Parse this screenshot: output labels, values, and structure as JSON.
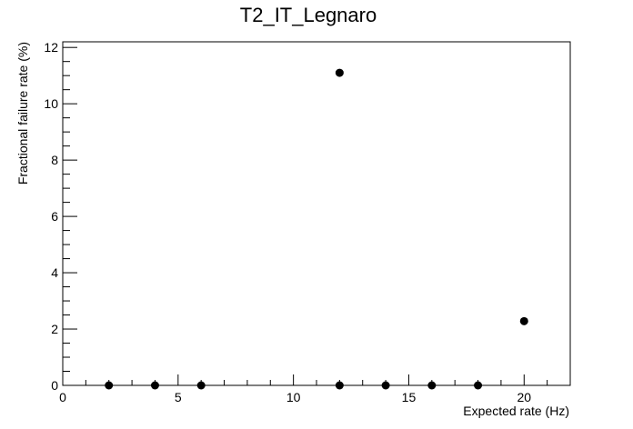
{
  "chart_data": {
    "type": "scatter",
    "title": "T2_IT_Legnaro",
    "xlabel": "Expected rate (Hz)",
    "ylabel": "Fractional failure rate (%)",
    "xlim": [
      0,
      22
    ],
    "ylim": [
      0,
      12.2
    ],
    "x_ticks": [
      0,
      5,
      10,
      15,
      20
    ],
    "y_ticks": [
      0,
      2,
      4,
      6,
      8,
      10,
      12
    ],
    "x_tick_labels": [
      "0",
      "5",
      "10",
      "15",
      "20"
    ],
    "y_tick_labels": [
      "0",
      "2",
      "4",
      "6",
      "8",
      "10",
      "12"
    ],
    "points": [
      {
        "x": 2,
        "y": 0
      },
      {
        "x": 4,
        "y": 0
      },
      {
        "x": 6,
        "y": 0
      },
      {
        "x": 12,
        "y": 0
      },
      {
        "x": 12,
        "y": 11.1
      },
      {
        "x": 14,
        "y": 0
      },
      {
        "x": 16,
        "y": 0
      },
      {
        "x": 18,
        "y": 0
      },
      {
        "x": 20,
        "y": 2.28
      }
    ],
    "grid": false,
    "marker_color": "#000000"
  }
}
